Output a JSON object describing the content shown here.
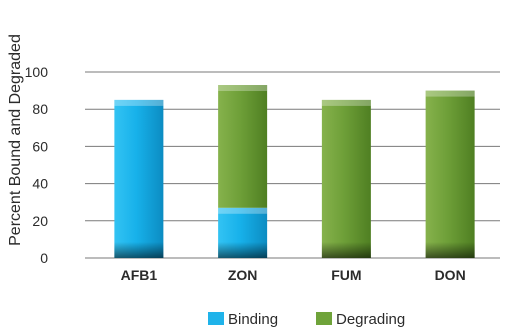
{
  "chart_data": {
    "type": "bar",
    "stacked": true,
    "ylabel": "Percent Bound and Degraded",
    "xlabel": "",
    "ylim": [
      0,
      100
    ],
    "yticks": [
      0,
      20,
      40,
      60,
      80,
      100
    ],
    "grid": true,
    "legend_position": "bottom",
    "categories": [
      "AFB1",
      "ZON",
      "FUM",
      "DON"
    ],
    "series": [
      {
        "name": "Binding",
        "color": "#1fb3ea",
        "values": [
          85,
          27,
          0,
          0
        ]
      },
      {
        "name": "Degrading",
        "color": "#6fa33a",
        "values": [
          0,
          66,
          85,
          90
        ]
      }
    ]
  }
}
